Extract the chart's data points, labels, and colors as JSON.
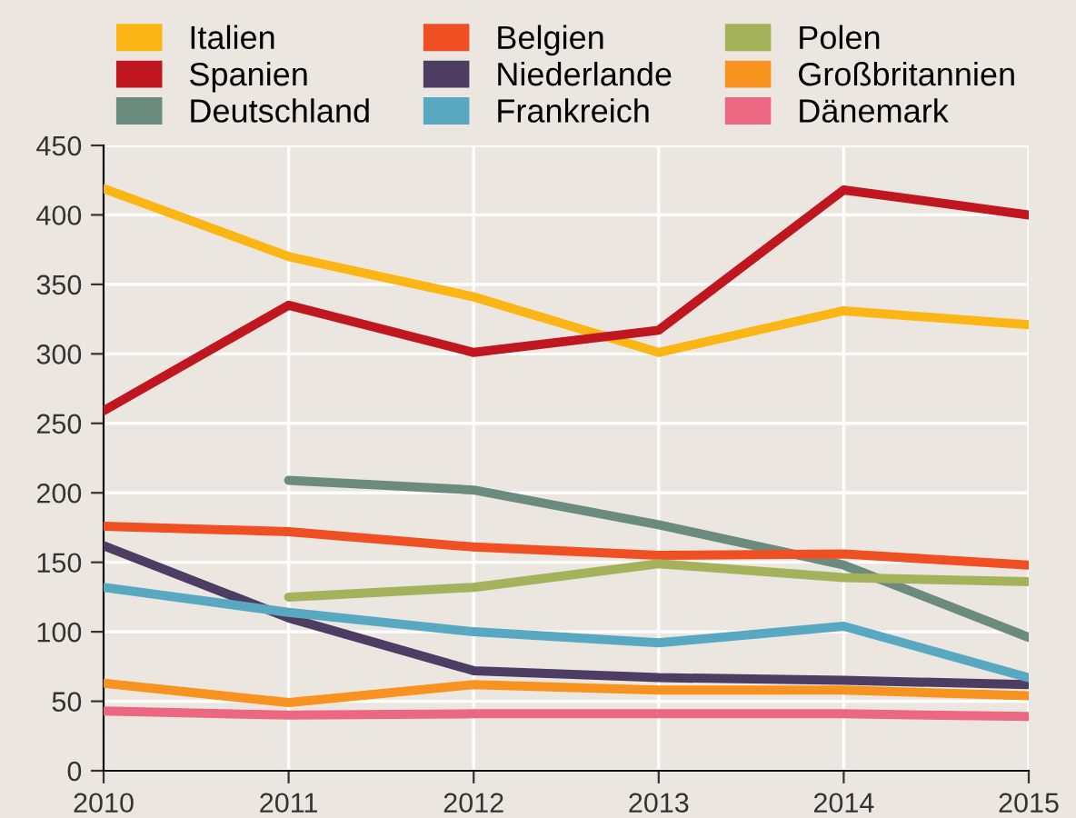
{
  "chart_data": {
    "type": "line",
    "x": [
      2010,
      2011,
      2012,
      2013,
      2014,
      2015
    ],
    "xlim": [
      2010,
      2015
    ],
    "xticks": [
      2010,
      2011,
      2012,
      2013,
      2014,
      2015
    ],
    "ylim": [
      0,
      450
    ],
    "yticks": [
      0,
      50,
      100,
      150,
      200,
      250,
      300,
      350,
      400,
      450
    ],
    "grid": true,
    "legend": "top",
    "marker": "none",
    "line_style": "solid",
    "series": [
      {
        "name": "Italien",
        "color": "#fbb615",
        "values": [
          419,
          370,
          341,
          301,
          331,
          321
        ]
      },
      {
        "name": "Spanien",
        "color": "#c0161f",
        "values": [
          259,
          335,
          301,
          317,
          418,
          400
        ]
      },
      {
        "name": "Deutschland",
        "color": "#6b8b7e",
        "values": [
          null,
          209,
          202,
          177,
          148,
          96
        ]
      },
      {
        "name": "Belgien",
        "color": "#f04e23",
        "values": [
          176,
          172,
          161,
          155,
          156,
          148
        ]
      },
      {
        "name": "Niederlande",
        "color": "#4d3d63",
        "values": [
          162,
          110,
          72,
          67,
          65,
          62
        ]
      },
      {
        "name": "Frankreich",
        "color": "#58a8c2",
        "values": [
          132,
          114,
          100,
          92,
          104,
          67
        ]
      },
      {
        "name": "Polen",
        "color": "#a4b35b",
        "values": [
          null,
          125,
          132,
          149,
          139,
          136
        ]
      },
      {
        "name": "Großbritannien",
        "color": "#f7931e",
        "values": [
          63,
          49,
          62,
          58,
          58,
          54
        ]
      },
      {
        "name": "Dänemark",
        "color": "#ec6781",
        "values": [
          43,
          40,
          41,
          41,
          41,
          39
        ]
      }
    ]
  }
}
